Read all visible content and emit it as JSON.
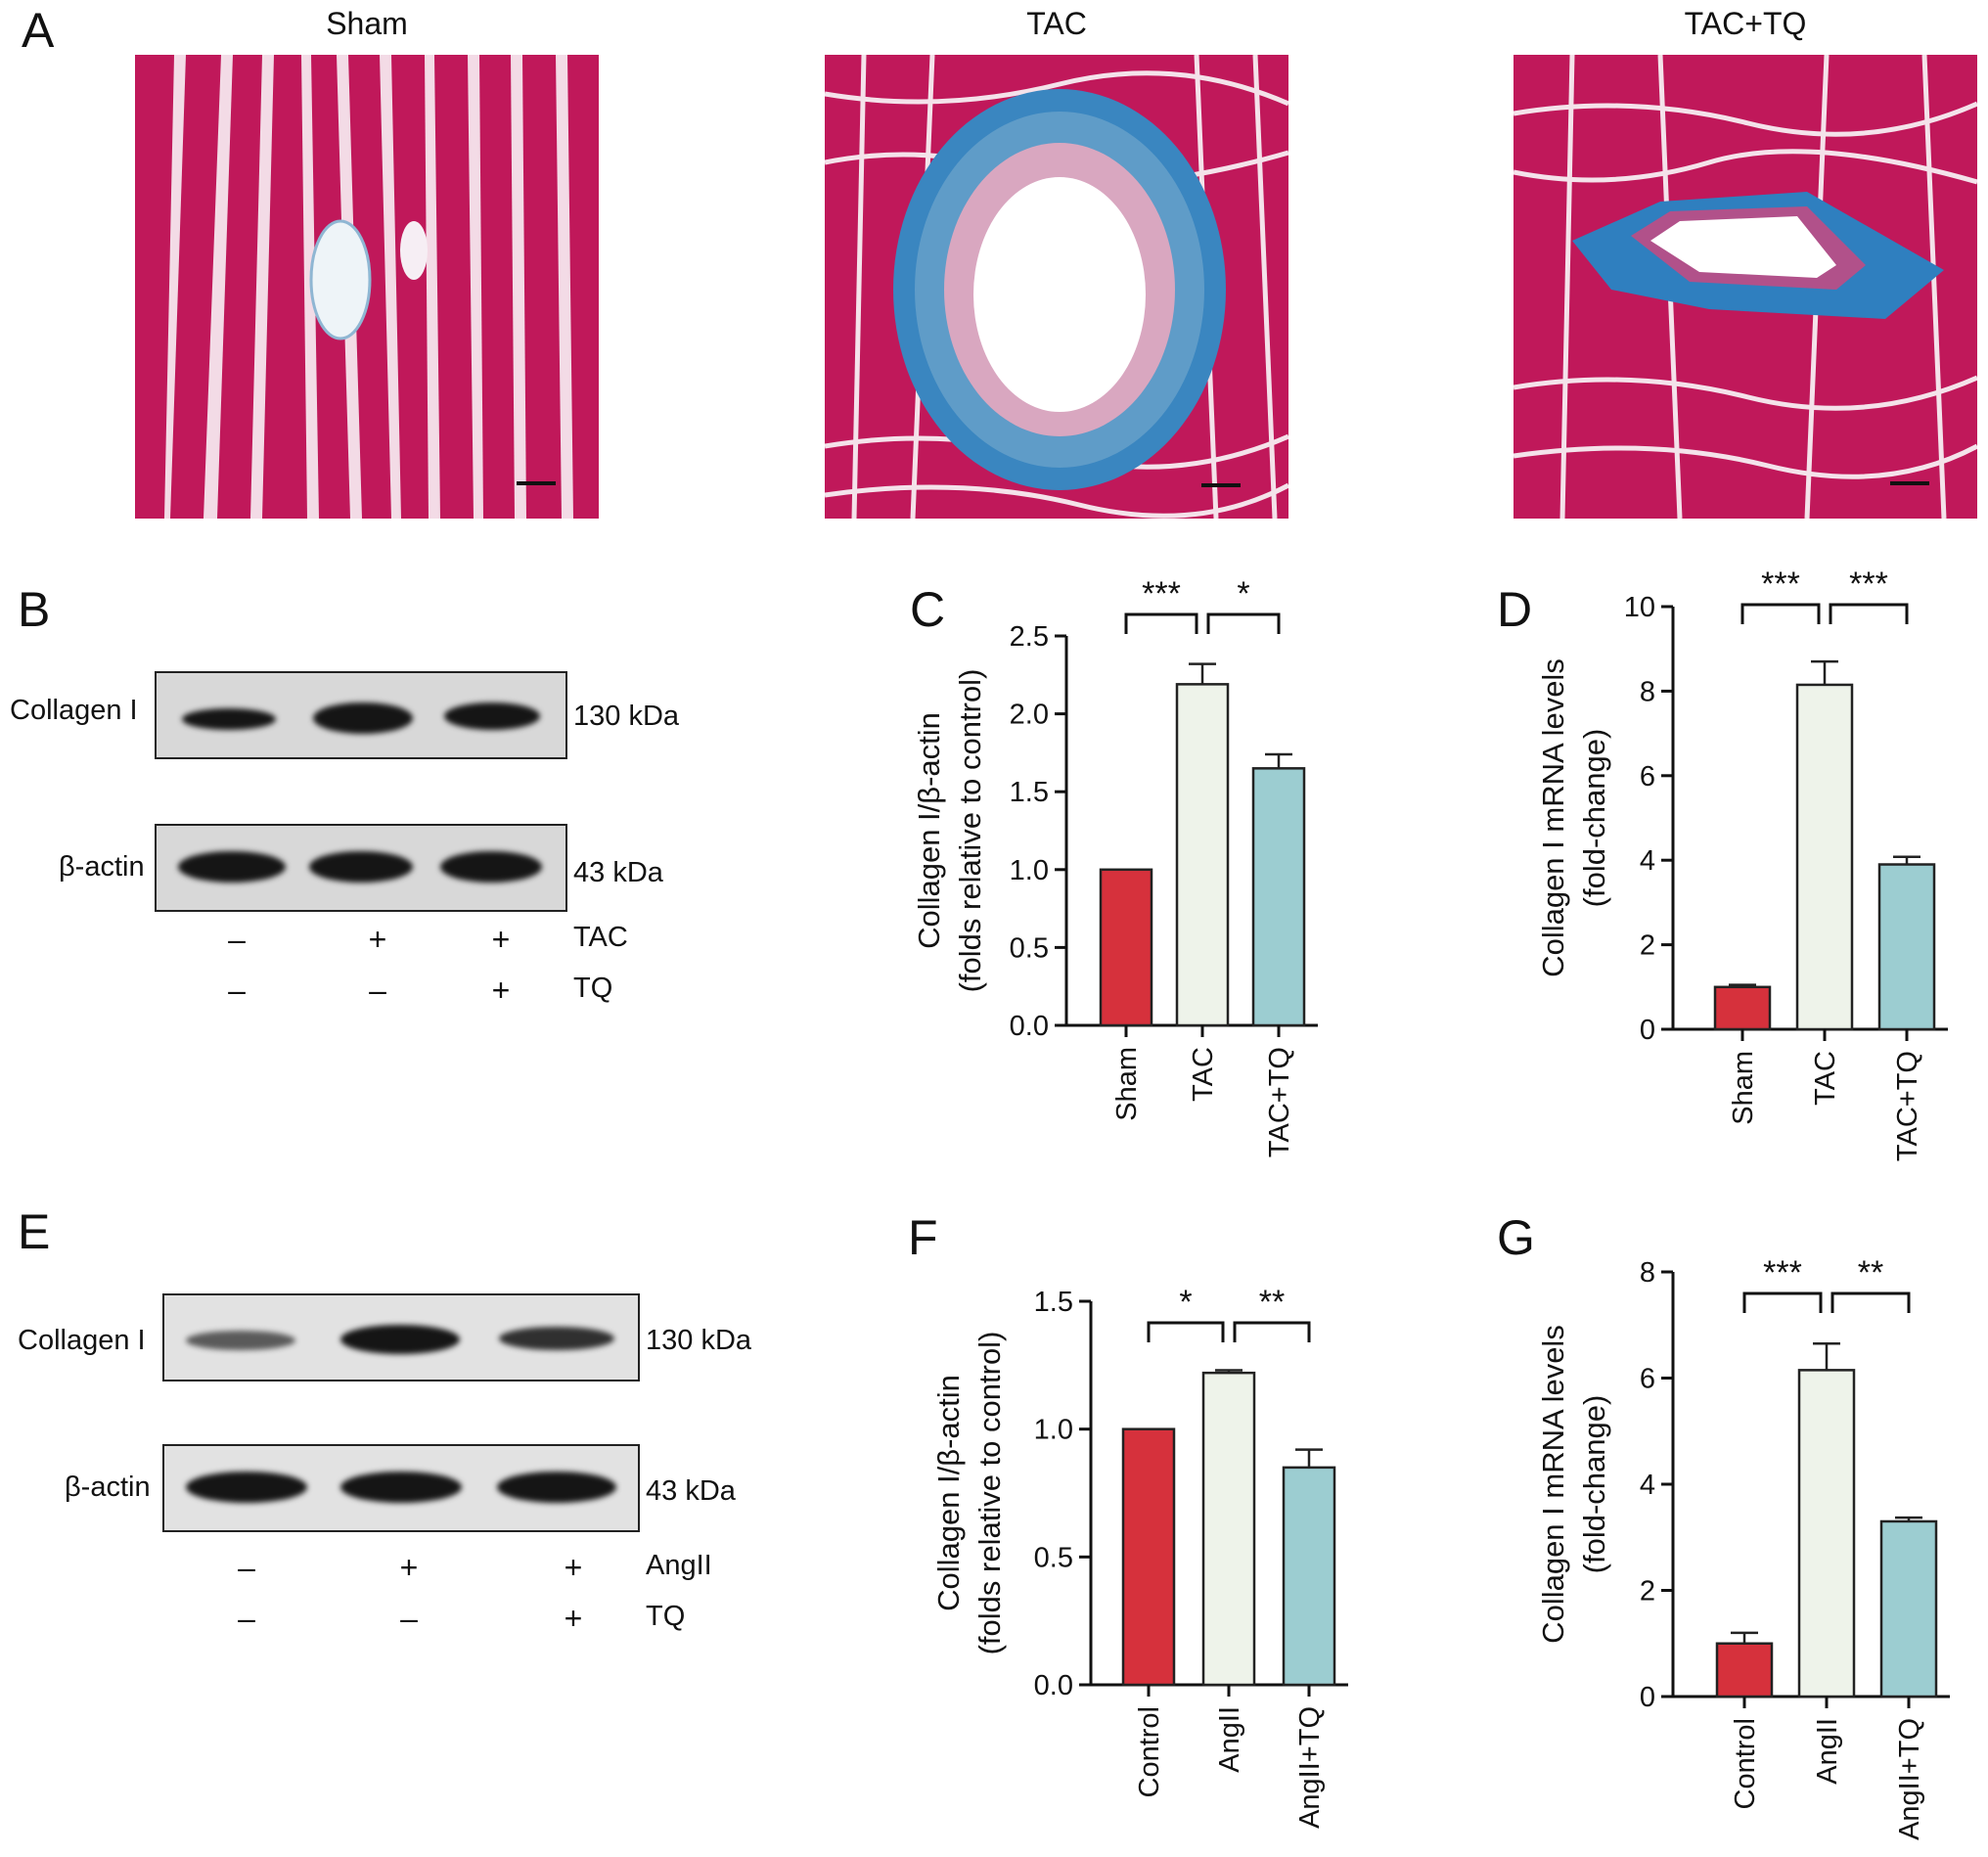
{
  "panels": {
    "A": "A",
    "B": "B",
    "C": "C",
    "D": "D",
    "E": "E",
    "F": "F",
    "G": "G"
  },
  "histology": {
    "titles": [
      "Sham",
      "TAC",
      "TAC+TQ"
    ],
    "colors": {
      "muscle": "#c0185a",
      "collagen": "#2e86c1",
      "lumen": "#ffffff"
    }
  },
  "blot_B": {
    "protein_label": "Collagen I",
    "protein_kda": "130 kDa",
    "loading_label": "β-actin",
    "loading_kda": "43 kDa",
    "rows": [
      {
        "label": "TAC",
        "signs": [
          "–",
          "+",
          "+"
        ]
      },
      {
        "label": "TQ",
        "signs": [
          "–",
          "–",
          "+"
        ]
      }
    ]
  },
  "blot_E": {
    "protein_label": "Collagen I",
    "protein_kda": "130 kDa",
    "loading_label": "β-actin",
    "loading_kda": "43 kDa",
    "rows": [
      {
        "label": "AngII",
        "signs": [
          "–",
          "+",
          "+"
        ]
      },
      {
        "label": "TQ",
        "signs": [
          "–",
          "–",
          "+"
        ]
      }
    ]
  },
  "chart_data": [
    {
      "panel": "C",
      "type": "bar",
      "categories": [
        "Sham",
        "TAC",
        "TAC+TQ"
      ],
      "values": [
        1.0,
        2.19,
        1.65
      ],
      "errors": [
        0,
        0.13,
        0.09
      ],
      "ylabel": "Collagen I/β-actin",
      "ylabel2": "(folds relative to control)",
      "ylim": [
        0,
        2.5
      ],
      "yticks": [
        "0.0",
        "0.5",
        "1.0",
        "1.5",
        "2.0",
        "2.5"
      ],
      "colors": [
        "#d6313c",
        "#eef3ea",
        "#9ccdd1"
      ],
      "significance": [
        {
          "from": 0,
          "to": 1,
          "label": "***"
        },
        {
          "from": 1,
          "to": 2,
          "label": "*"
        }
      ]
    },
    {
      "panel": "D",
      "type": "bar",
      "categories": [
        "Sham",
        "TAC",
        "TAC+TQ"
      ],
      "values": [
        1.0,
        8.15,
        3.9
      ],
      "errors": [
        0.05,
        0.55,
        0.18
      ],
      "ylabel": "Collagen I mRNA levels",
      "ylabel2": "(fold-change)",
      "ylim": [
        0,
        10
      ],
      "yticks": [
        "0",
        "2",
        "4",
        "6",
        "8",
        "10"
      ],
      "colors": [
        "#d6313c",
        "#eef3ea",
        "#9ccdd1"
      ],
      "significance": [
        {
          "from": 0,
          "to": 1,
          "label": "***"
        },
        {
          "from": 1,
          "to": 2,
          "label": "***"
        }
      ]
    },
    {
      "panel": "F",
      "type": "bar",
      "categories": [
        "Control",
        "AngII",
        "AngII+TQ"
      ],
      "values": [
        1.0,
        1.22,
        0.85
      ],
      "errors": [
        0,
        0.01,
        0.07
      ],
      "ylabel": "Collagen I/β-actin",
      "ylabel2": "(folds relative to control)",
      "ylim": [
        0,
        1.5
      ],
      "yticks": [
        "0.0",
        "0.5",
        "1.0",
        "1.5"
      ],
      "colors": [
        "#d6313c",
        "#eef3ea",
        "#9ccdd1"
      ],
      "significance": [
        {
          "from": 0,
          "to": 1,
          "label": "*"
        },
        {
          "from": 1,
          "to": 2,
          "label": "**"
        }
      ]
    },
    {
      "panel": "G",
      "type": "bar",
      "categories": [
        "Control",
        "AngII",
        "AngII+TQ"
      ],
      "values": [
        1.0,
        6.15,
        3.3
      ],
      "errors": [
        0.2,
        0.5,
        0.07
      ],
      "ylabel": "Collagen I mRNA levels",
      "ylabel2": "(fold-change)",
      "ylim": [
        0,
        8
      ],
      "yticks": [
        "0",
        "2",
        "4",
        "6",
        "8"
      ],
      "colors": [
        "#d6313c",
        "#eef3ea",
        "#9ccdd1"
      ],
      "significance": [
        {
          "from": 0,
          "to": 1,
          "label": "***"
        },
        {
          "from": 1,
          "to": 2,
          "label": "**"
        }
      ]
    }
  ]
}
